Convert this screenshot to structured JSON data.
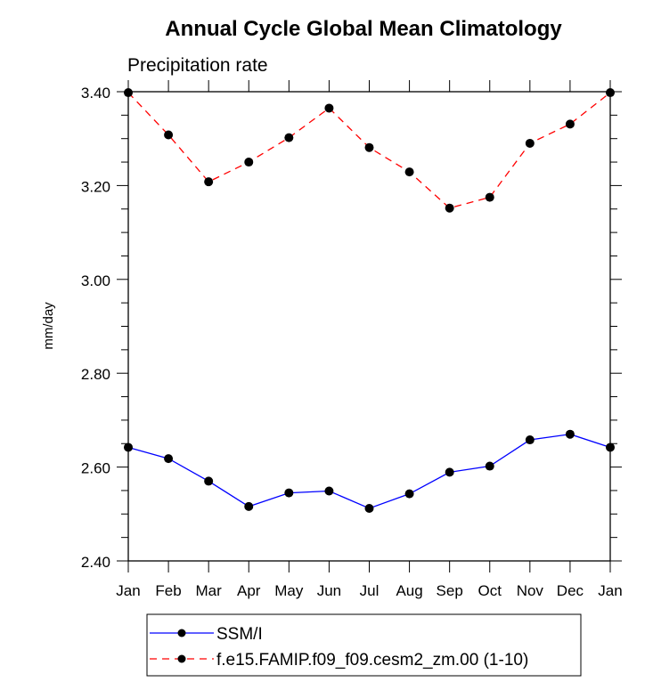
{
  "chart_data": {
    "type": "line",
    "title": "Annual Cycle Global Mean Climatology",
    "subtitle": "Precipitation rate",
    "xlabel": "",
    "ylabel": "mm/day",
    "categories": [
      "Jan",
      "Feb",
      "Mar",
      "Apr",
      "May",
      "Jun",
      "Jul",
      "Aug",
      "Sep",
      "Oct",
      "Nov",
      "Dec",
      "Jan"
    ],
    "ylim": [
      2.4,
      3.4
    ],
    "yticks": [
      2.4,
      2.6,
      2.8,
      3.0,
      3.2,
      3.4
    ],
    "ytick_labels": [
      "2.40",
      "2.60",
      "2.80",
      "3.00",
      "3.20",
      "3.40"
    ],
    "y_minor_step": 0.05,
    "grid": false,
    "legend_position": "bottom-center",
    "series": [
      {
        "name": "SSM/I",
        "color": "#0000ff",
        "line_style": "solid",
        "marker": "filled-circle",
        "values": [
          2.642,
          2.618,
          2.57,
          2.516,
          2.545,
          2.549,
          2.512,
          2.543,
          2.589,
          2.602,
          2.658,
          2.67,
          2.642
        ]
      },
      {
        "name": "f.e15.FAMIP.f09_f09.cesm2_zm.00 (1-10)",
        "color": "#ff0000",
        "line_style": "dashed",
        "marker": "filled-circle",
        "values": [
          3.398,
          3.308,
          3.208,
          3.25,
          3.302,
          3.365,
          3.281,
          3.229,
          3.152,
          3.175,
          3.29,
          3.331,
          3.398
        ]
      }
    ]
  }
}
